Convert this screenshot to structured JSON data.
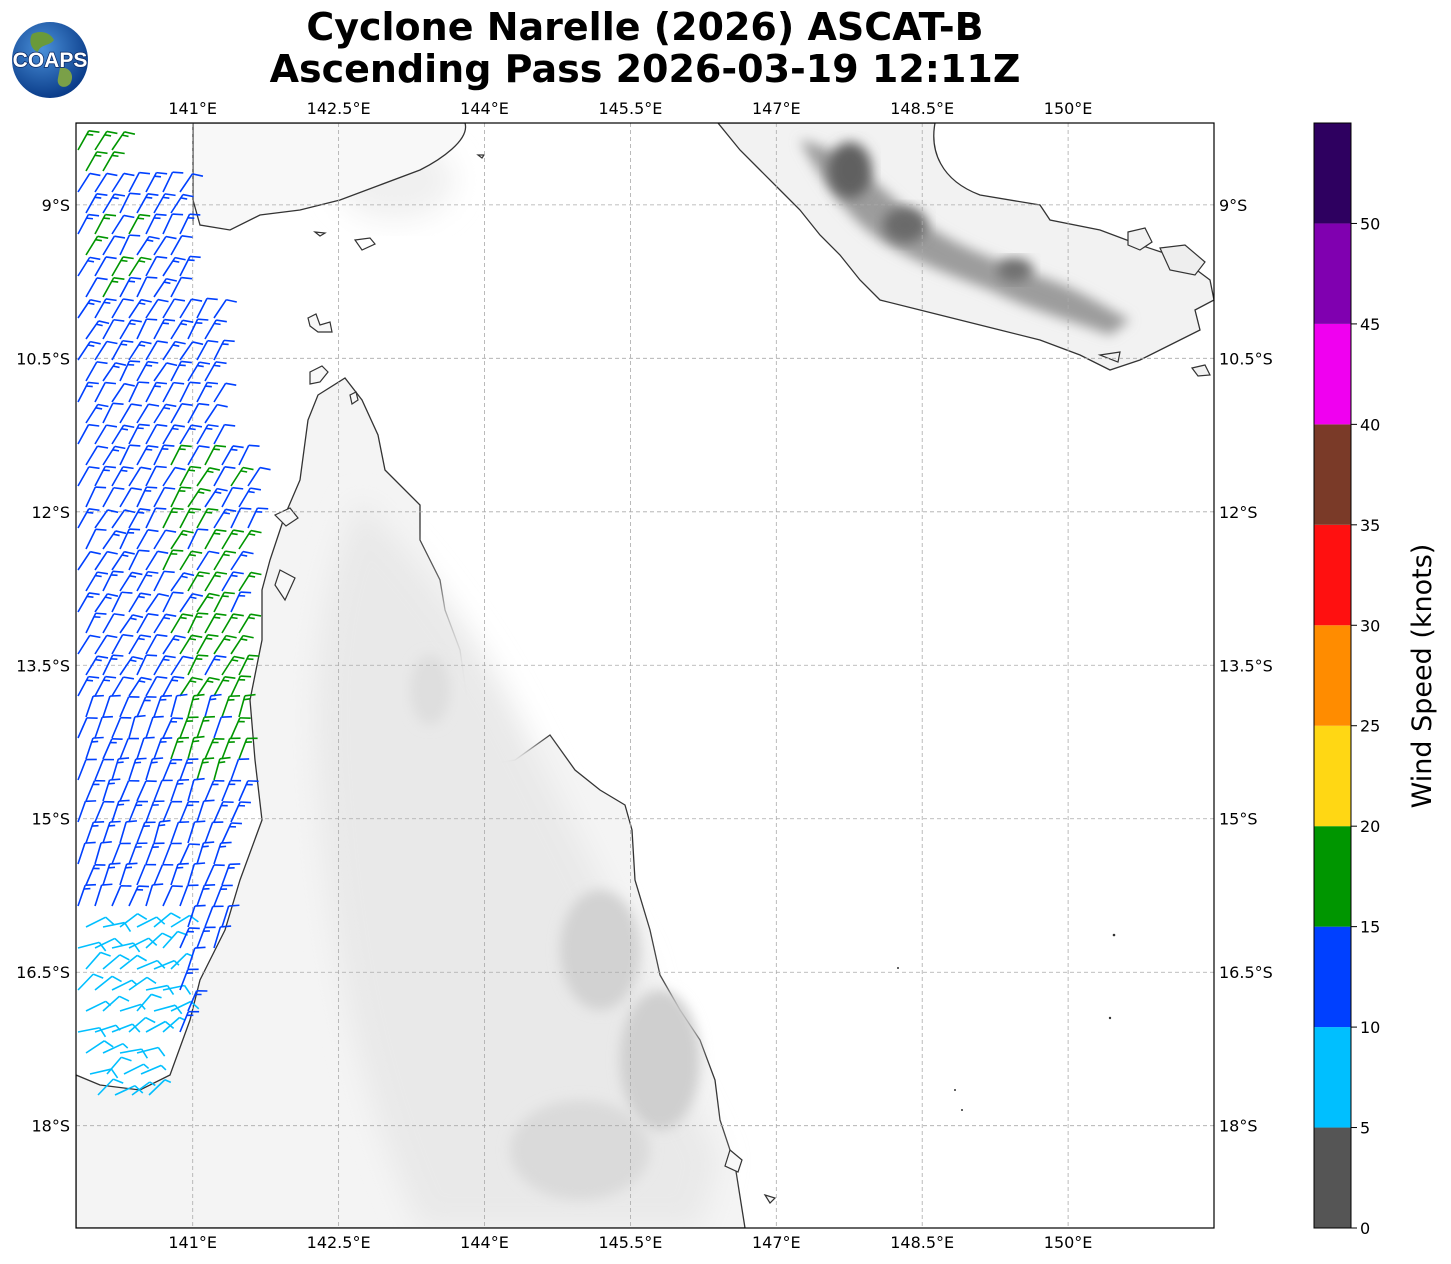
{
  "title": {
    "line1": "Cyclone Narelle (2026) ASCAT-B",
    "line2": "Ascending Pass 2026-03-19 12:11Z"
  },
  "logo": {
    "text": "COAPS",
    "icon": "globe-icon"
  },
  "map": {
    "lon_range": [
      139.8,
      151.5
    ],
    "lat_range": [
      -8.2,
      -19.0
    ],
    "lon_ticks": [
      {
        "value": 141.0,
        "label": "141°E"
      },
      {
        "value": 142.5,
        "label": "142.5°E"
      },
      {
        "value": 144.0,
        "label": "144°E"
      },
      {
        "value": 145.5,
        "label": "145.5°E"
      },
      {
        "value": 147.0,
        "label": "147°E"
      },
      {
        "value": 148.5,
        "label": "148.5°E"
      },
      {
        "value": 150.0,
        "label": "150°E"
      }
    ],
    "lat_ticks": [
      {
        "value": -9.0,
        "label": "9°S"
      },
      {
        "value": -10.5,
        "label": "10.5°S"
      },
      {
        "value": -12.0,
        "label": "12°S"
      },
      {
        "value": -13.5,
        "label": "13.5°S"
      },
      {
        "value": -15.0,
        "label": "15°S"
      },
      {
        "value": -16.5,
        "label": "16.5°S"
      },
      {
        "value": -18.0,
        "label": "18°S"
      }
    ],
    "grid": true,
    "gridline_color": "#aaaaaa",
    "land_shading": "grayscale terrain",
    "coastline_color": "#333333"
  },
  "colorbar": {
    "label": "Wind Speed (knots)",
    "bins": [
      {
        "min": 0,
        "max": 5,
        "color": "#555555"
      },
      {
        "min": 5,
        "max": 10,
        "color": "#00bfff"
      },
      {
        "min": 10,
        "max": 15,
        "color": "#0040ff"
      },
      {
        "min": 15,
        "max": 20,
        "color": "#009600"
      },
      {
        "min": 20,
        "max": 25,
        "color": "#ffd714"
      },
      {
        "min": 25,
        "max": 30,
        "color": "#ff8c00"
      },
      {
        "min": 30,
        "max": 35,
        "color": "#ff1010"
      },
      {
        "min": 35,
        "max": 40,
        "color": "#7a3a28"
      },
      {
        "min": 40,
        "max": 45,
        "color": "#f000f0"
      },
      {
        "min": 45,
        "max": 50,
        "color": "#8000b0"
      },
      {
        "min": 50,
        "max": 55,
        "color": "#2e0060"
      }
    ],
    "ticks": [
      0,
      5,
      10,
      15,
      20,
      25,
      30,
      35,
      40,
      45,
      50
    ]
  }
}
